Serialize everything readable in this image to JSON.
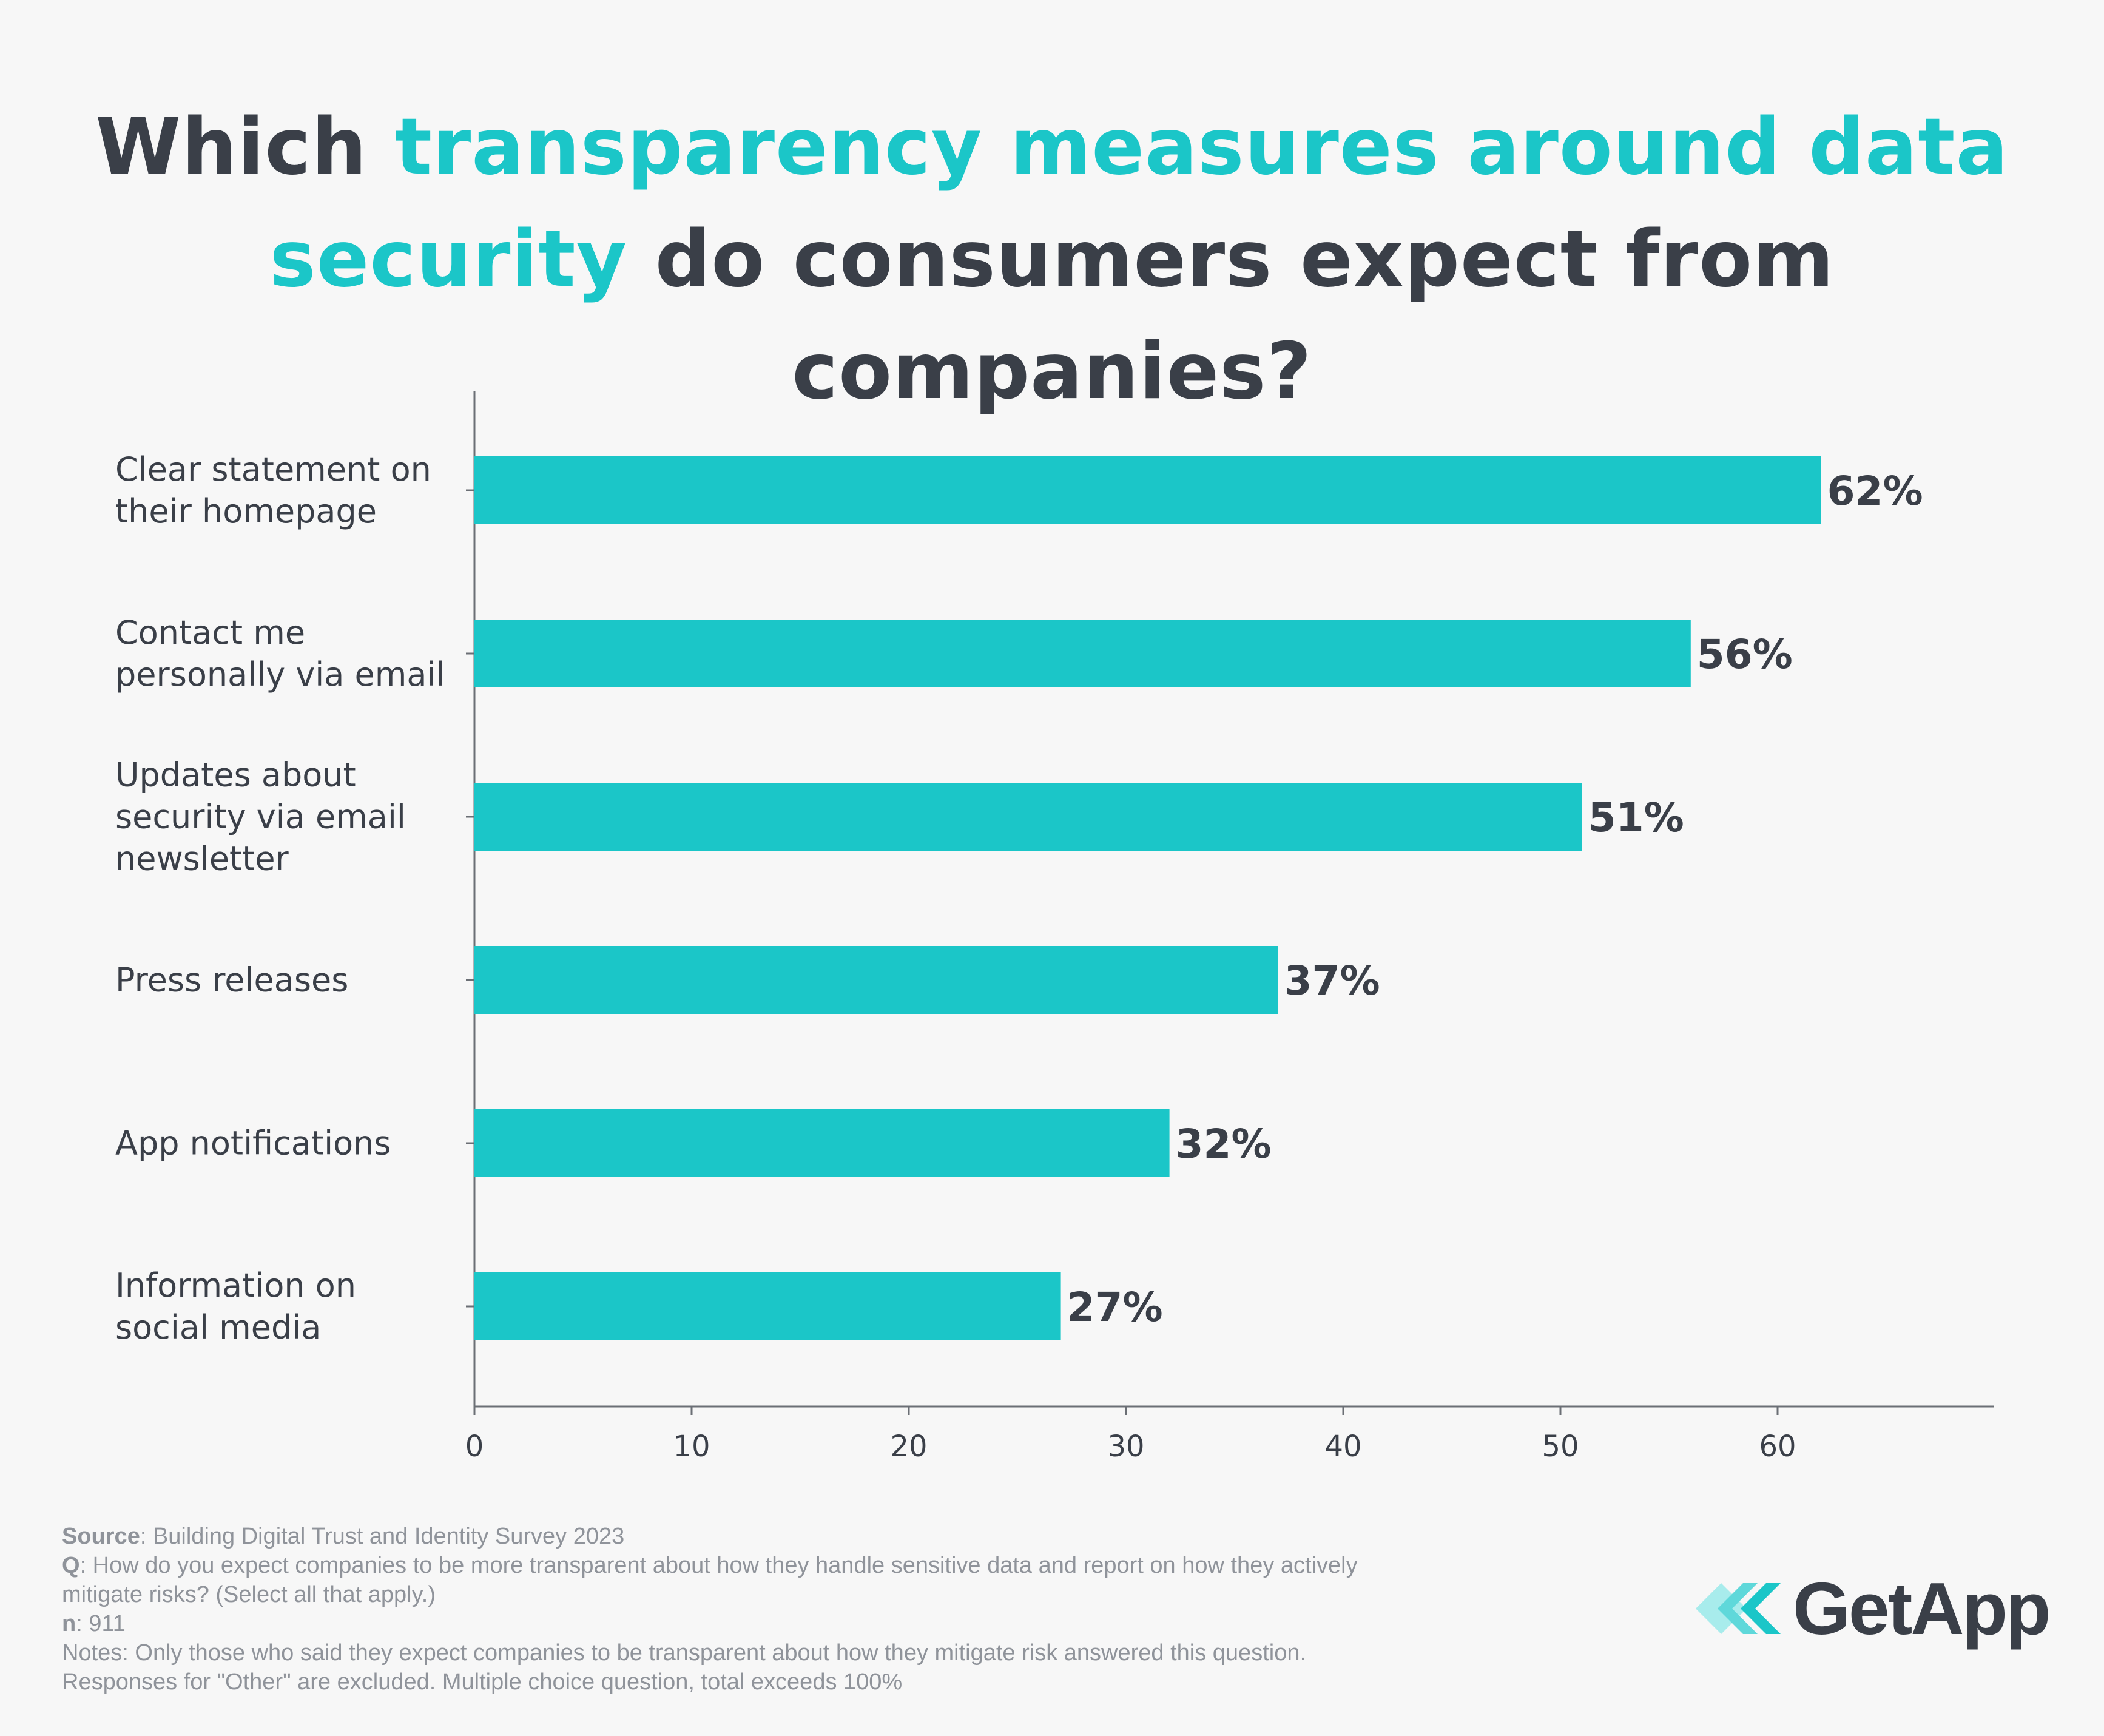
{
  "title": {
    "part1": "Which ",
    "highlight1": "transparency measures around data",
    "highlight2": "security",
    "part2": " do consumers expect from companies?"
  },
  "colors": {
    "accent": "#1bc6c8",
    "text": "#3a3f48",
    "muted": "#8f939a",
    "axis": "#6b6f75",
    "background": "#f7f7f7"
  },
  "chart_data": {
    "type": "bar",
    "orientation": "horizontal",
    "categories": [
      [
        "Clear statement on",
        "their homepage"
      ],
      [
        "Contact me",
        "personally via email"
      ],
      [
        "Updates about",
        "security via email",
        "newsletter"
      ],
      [
        "Press releases"
      ],
      [
        "App notifications"
      ],
      [
        "Information on",
        "social media"
      ]
    ],
    "values": [
      62,
      56,
      51,
      37,
      32,
      27
    ],
    "value_labels": [
      "62%",
      "56%",
      "51%",
      "37%",
      "32%",
      "27%"
    ],
    "xticks": [
      "0",
      "10",
      "20",
      "30",
      "40",
      "50",
      "60"
    ],
    "xlim": [
      0,
      70
    ],
    "grid": false
  },
  "footer": {
    "source_label": "Source",
    "source_text": ": Building Digital Trust and Identity Survey 2023",
    "q_label": "Q",
    "q_text_1": ": How do you expect companies to be more transparent about how they handle sensitive data and report on how they actively",
    "q_text_2": "mitigate risks? (Select all that apply.)",
    "n_label": "n",
    "n_text": ": 911",
    "notes_1": "Notes: Only those who said they expect companies to be transparent about how they mitigate risk answered this question.",
    "notes_2": "Responses for \"Other\" are excluded. Multiple choice question, total exceeds 100%"
  },
  "logo": {
    "text": "GetApp",
    "icon": "getapp-chevrons-icon"
  }
}
